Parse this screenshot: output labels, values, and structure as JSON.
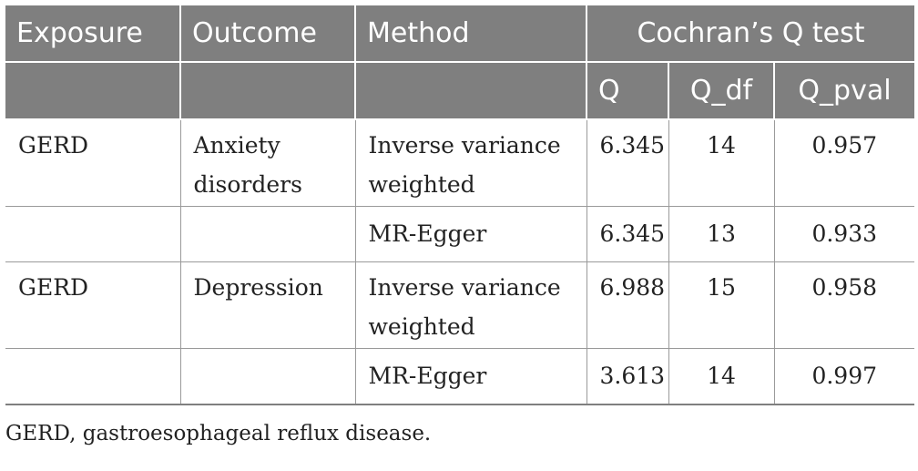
{
  "table": {
    "headers": {
      "exposure": "Exposure",
      "outcome": "Outcome",
      "method": "Method",
      "group": "Cochran’s Q test",
      "q": "Q",
      "q_df": "Q_df",
      "q_pval": "Q_pval"
    },
    "rows": [
      {
        "exposure": "GERD",
        "outcome": "Anxiety disorders",
        "method": "Inverse variance weighted",
        "q": "6.345",
        "q_df": "14",
        "q_pval": "0.957"
      },
      {
        "exposure": "",
        "outcome": "",
        "method": "MR-Egger",
        "q": "6.345",
        "q_df": "13",
        "q_pval": "0.933"
      },
      {
        "exposure": "GERD",
        "outcome": "Depression",
        "method": "Inverse variance weighted",
        "q": "6.988",
        "q_df": "15",
        "q_pval": "0.958"
      },
      {
        "exposure": "",
        "outcome": "",
        "method": "MR-Egger",
        "q": "3.613",
        "q_df": "14",
        "q_pval": "0.997"
      }
    ]
  },
  "footnote": "GERD, gastroesophageal reflux disease."
}
